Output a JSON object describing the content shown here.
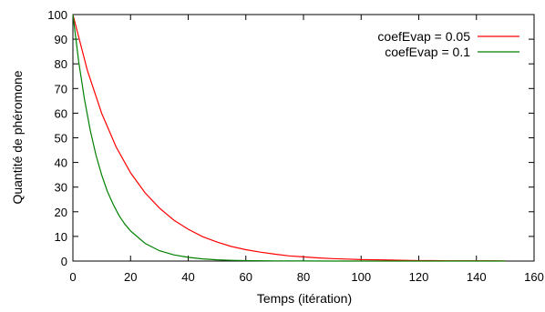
{
  "chart_data": {
    "type": "line",
    "title": "",
    "xlabel": "Temps (itération)",
    "ylabel": "Quantité de phéromone",
    "xlim": [
      0,
      160
    ],
    "ylim": [
      0,
      100
    ],
    "x_ticks": [
      0,
      20,
      40,
      60,
      80,
      100,
      120,
      140,
      160
    ],
    "y_ticks": [
      0,
      10,
      20,
      30,
      40,
      50,
      60,
      70,
      80,
      90,
      100
    ],
    "grid": false,
    "legend_position": "top-right",
    "series": [
      {
        "name": "coefEvap = 0.05",
        "color": "#ff0000",
        "x": [
          0,
          5,
          10,
          15,
          20,
          25,
          30,
          35,
          40,
          45,
          50,
          55,
          60,
          65,
          70,
          75,
          80,
          85,
          90,
          95,
          100,
          105,
          110,
          115,
          120,
          125,
          130,
          135,
          140,
          145,
          150
        ],
        "y": [
          100,
          77.4,
          59.9,
          46.3,
          35.8,
          27.7,
          21.5,
          16.6,
          12.9,
          9.9,
          7.7,
          5.9,
          4.6,
          3.6,
          2.8,
          2.1,
          1.7,
          1.3,
          1.0,
          0.8,
          0.6,
          0.5,
          0.4,
          0.3,
          0.2,
          0.2,
          0.1,
          0.1,
          0.1,
          0.1,
          0.05
        ]
      },
      {
        "name": "coefEvap = 0.1",
        "color": "#008000",
        "x": [
          0,
          2,
          4,
          6,
          8,
          10,
          12,
          14,
          16,
          18,
          20,
          25,
          30,
          35,
          40,
          45,
          50,
          55,
          60,
          70,
          80,
          90,
          100,
          110,
          120,
          130,
          140,
          150
        ],
        "y": [
          100,
          81.0,
          65.6,
          53.1,
          43.0,
          34.9,
          28.2,
          22.9,
          18.5,
          15.0,
          12.2,
          7.2,
          4.2,
          2.5,
          1.5,
          0.9,
          0.5,
          0.3,
          0.2,
          0.06,
          0.02,
          0.01,
          0,
          0,
          0,
          0,
          0,
          0
        ]
      }
    ]
  }
}
